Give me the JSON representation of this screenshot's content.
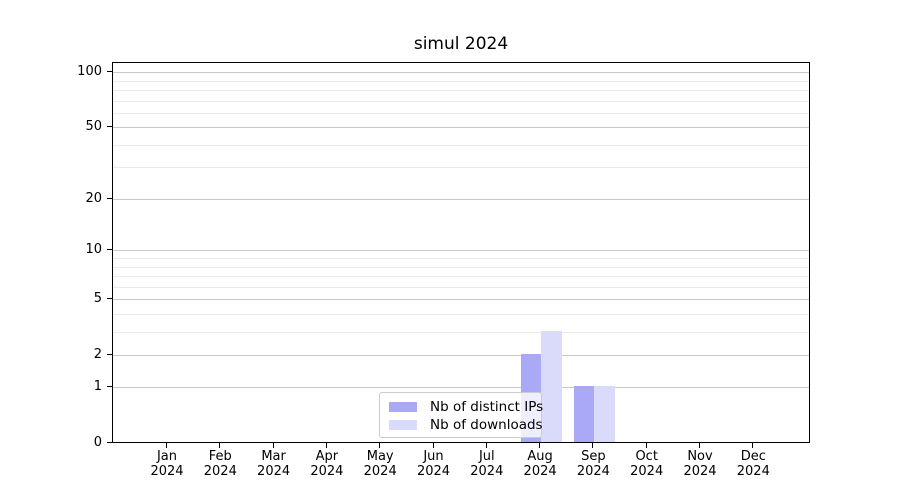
{
  "title": "simul 2024",
  "legend": {
    "items": [
      "Nb of distinct IPs",
      "Nb of downloads"
    ]
  },
  "axes": {
    "y_tick_labels": [
      "0",
      "1",
      "2",
      "5",
      "10",
      "20",
      "50",
      "100"
    ],
    "x_tick_year": "2024",
    "x_tick_months": [
      "Jan",
      "Feb",
      "Mar",
      "Apr",
      "May",
      "Jun",
      "Jul",
      "Aug",
      "Sep",
      "Oct",
      "Nov",
      "Dec"
    ]
  },
  "colors": {
    "distinct_ips": "#a9a9f8",
    "downloads": "#dadafb",
    "grid_major": "#c9c9c9",
    "grid_minor": "#ebebeb",
    "axis": "#000000",
    "background": "#ffffff",
    "legend_border": "#cccccc"
  },
  "chart_data": {
    "type": "bar",
    "title": "simul 2024",
    "categories": [
      "Jan 2024",
      "Feb 2024",
      "Mar 2024",
      "Apr 2024",
      "May 2024",
      "Jun 2024",
      "Jul 2024",
      "Aug 2024",
      "Sep 2024",
      "Oct 2024",
      "Nov 2024",
      "Dec 2024"
    ],
    "series": [
      {
        "name": "Nb of distinct IPs",
        "color": "#a9a9f8",
        "values": [
          0,
          0,
          0,
          0,
          0,
          0,
          0,
          2,
          1,
          0,
          0,
          0
        ]
      },
      {
        "name": "Nb of downloads",
        "color": "#dadafb",
        "values": [
          0,
          0,
          0,
          0,
          0,
          0,
          0,
          3,
          1,
          0,
          0,
          0
        ]
      }
    ],
    "yscale": "log1p",
    "ylim": [
      0,
      114
    ],
    "y_major_ticks": [
      0,
      1,
      2,
      5,
      10,
      20,
      50,
      100
    ],
    "y_minor_ticks": [
      3,
      4,
      6,
      7,
      8,
      9,
      30,
      40,
      60,
      70,
      80,
      90
    ],
    "xlabel": "",
    "ylabel": "",
    "grid": true,
    "legend_position": "lower center"
  }
}
